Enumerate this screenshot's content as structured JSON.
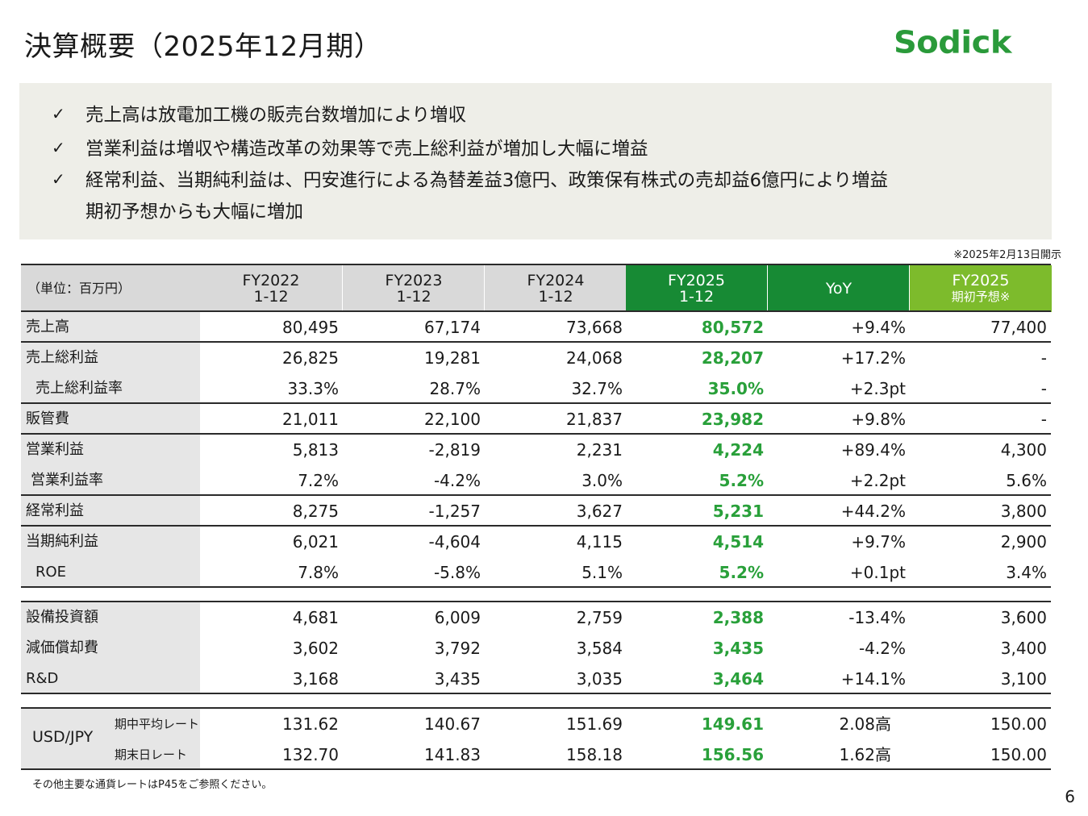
{
  "header": {
    "title": "決算概要（2025年12月期）",
    "logo": "Sodick"
  },
  "summary": {
    "bullets": [
      "売上高は放電加工機の販売台数増加により増収",
      "営業利益は増収や構造改革の効果等で売上総利益が増加し大幅に増益",
      "経常利益、当期純利益は、円安進行による為替差益3億円、政策保有株式の売却益6億円により増益"
    ],
    "continuation": "期初予想からも大幅に増加",
    "check_glyph": "✓"
  },
  "note_top": "※2025年2月13日開示",
  "table": {
    "unit_label": "（単位：百万円）",
    "headers": [
      {
        "l1": "FY2022",
        "l2": "1-12"
      },
      {
        "l1": "FY2023",
        "l2": "1-12"
      },
      {
        "l1": "FY2024",
        "l2": "1-12"
      },
      {
        "l1": "FY2025",
        "l2": "1-12"
      },
      {
        "l1": "YoY",
        "l2": ""
      },
      {
        "l1": "FY2025",
        "l2": "期初予想※"
      }
    ],
    "header_colors": {
      "dark_green": "#178a34",
      "light_green": "#7dbb2c",
      "gray": "#d9d9d9"
    },
    "rows": [
      {
        "name": "売上高",
        "values": [
          "80,495",
          "67,174",
          "73,668",
          "80,572",
          "+9.4%",
          "77,400"
        ]
      },
      {
        "name": "売上総利益",
        "values": [
          "26,825",
          "19,281",
          "24,068",
          "28,207",
          "+17.2%",
          "-"
        ]
      },
      {
        "name": "売上総利益率",
        "values": [
          "33.3%",
          "28.7%",
          "32.7%",
          "35.0%",
          "+2.3pt",
          "-"
        ]
      },
      {
        "name": "販管費",
        "values": [
          "21,011",
          "22,100",
          "21,837",
          "23,982",
          "+9.8%",
          "-"
        ]
      },
      {
        "name": "営業利益",
        "values": [
          "5,813",
          "-2,819",
          "2,231",
          "4,224",
          "+89.4%",
          "4,300"
        ]
      },
      {
        "name": "営業利益率",
        "values": [
          "7.2%",
          "-4.2%",
          "3.0%",
          "5.2%",
          "+2.2pt",
          "5.6%"
        ]
      },
      {
        "name": "経常利益",
        "values": [
          "8,275",
          "-1,257",
          "3,627",
          "5,231",
          "+44.2%",
          "3,800"
        ]
      },
      {
        "name": "当期純利益",
        "values": [
          "6,021",
          "-4,604",
          "4,115",
          "4,514",
          "+9.7%",
          "2,900"
        ]
      },
      {
        "name": "ROE",
        "values": [
          "7.8%",
          "-5.8%",
          "5.1%",
          "5.2%",
          "+0.1pt",
          "3.4%"
        ]
      }
    ],
    "rows2": [
      {
        "name": "設備投資額",
        "values": [
          "4,681",
          "6,009",
          "2,759",
          "2,388",
          "-13.4%",
          "3,600"
        ]
      },
      {
        "name": "減価償却費",
        "values": [
          "3,602",
          "3,792",
          "3,584",
          "3,435",
          "-4.2%",
          "3,400"
        ]
      },
      {
        "name": "R&D",
        "values": [
          "3,168",
          "3,435",
          "3,035",
          "3,464",
          "+14.1%",
          "3,100"
        ]
      }
    ],
    "fx": {
      "label": "USD/JPY",
      "rows": [
        {
          "name": "期中平均レート",
          "values": [
            "131.62",
            "140.67",
            "151.69",
            "149.61",
            "2.08高",
            "150.00"
          ]
        },
        {
          "name": "期末日レート",
          "values": [
            "132.70",
            "141.83",
            "158.18",
            "156.56",
            "1.62高",
            "150.00"
          ]
        }
      ]
    }
  },
  "footnote": "その他主要な通貨レートはP45をご参照ください。",
  "page_number": "6"
}
